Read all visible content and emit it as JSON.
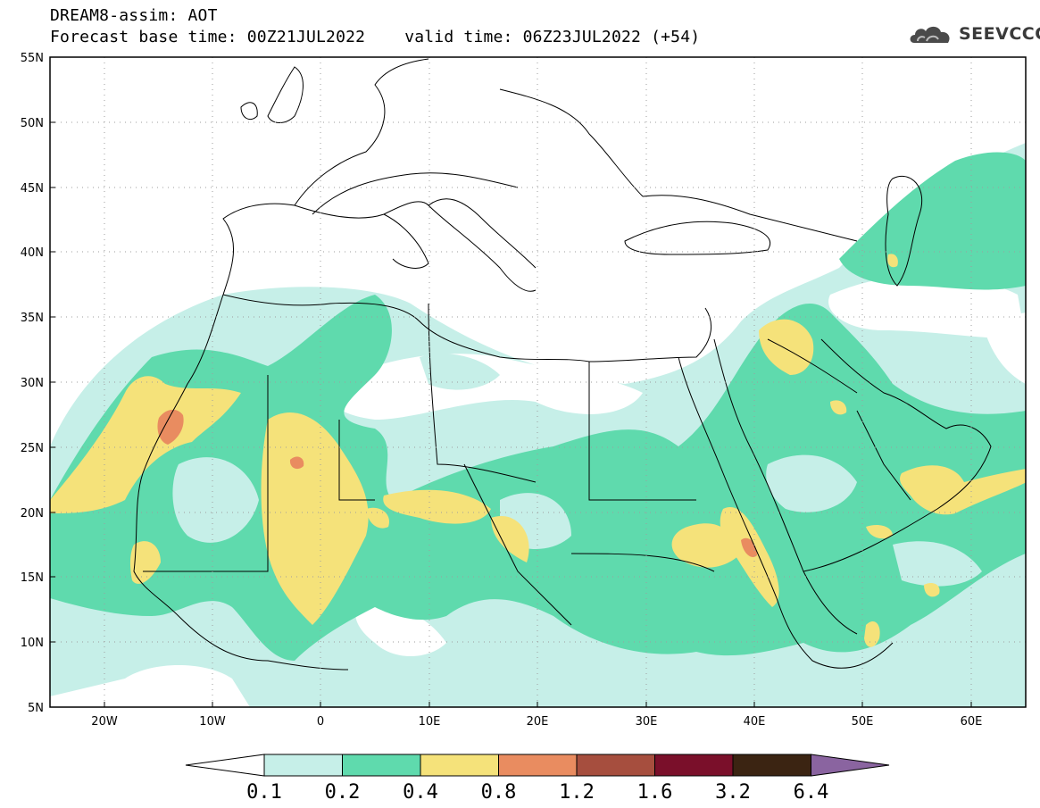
{
  "header": {
    "line1": "DREAM8-assim: AOT",
    "base_time_text": "Forecast base time: 00Z21JUL2022",
    "valid_time_text": "valid time: 06Z23JUL2022 (+54)"
  },
  "logo": {
    "text": "SEEVCCC",
    "icon": "cloud-icon"
  },
  "map": {
    "lat_labels": [
      "55N",
      "50N",
      "45N",
      "40N",
      "35N",
      "30N",
      "25N",
      "20N",
      "15N",
      "10N",
      "5N"
    ],
    "lon_labels": [
      "20W",
      "10W",
      "0",
      "10E",
      "20E",
      "30E",
      "40E",
      "50E",
      "60E"
    ],
    "lat_range": [
      5,
      55
    ],
    "lon_range": [
      -25,
      65
    ],
    "grid": "dotted"
  },
  "colorbar": {
    "labels": [
      "0.1",
      "0.2",
      "0.4",
      "0.8",
      "1.2",
      "1.6",
      "3.2",
      "6.4"
    ],
    "colors": [
      "#ffffff",
      "#c6efe8",
      "#5fdaad",
      "#f5e27a",
      "#e98c60",
      "#a64e3e",
      "#7a0f2a",
      "#3b2412",
      "#8a64a0"
    ]
  }
}
